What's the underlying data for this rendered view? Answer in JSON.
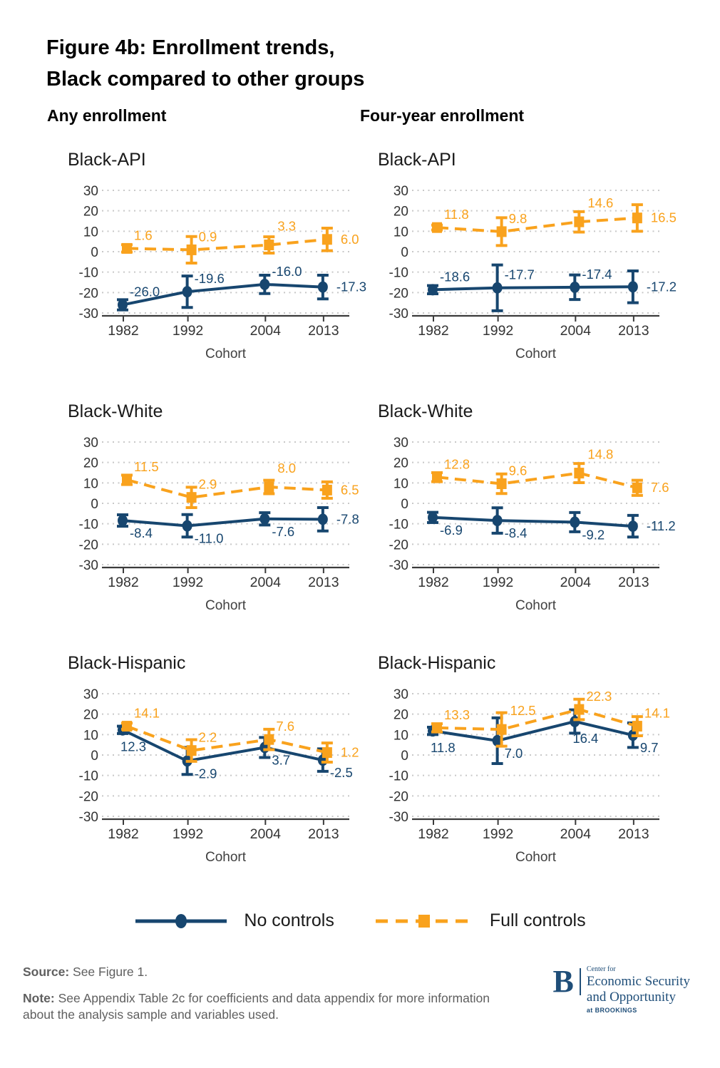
{
  "title": {
    "line1": "Figure 4b: Enrollment trends,",
    "line2": "Black compared to other groups"
  },
  "column_headers": [
    "Any enrollment",
    "Four-year enrollment"
  ],
  "legend": {
    "items": [
      {
        "label": "No controls",
        "series": "no_controls",
        "line": "solid",
        "marker": "circle"
      },
      {
        "label": "Full controls",
        "series": "full_controls",
        "line": "dashed",
        "marker": "square"
      }
    ]
  },
  "footer": {
    "source_label": "Source:",
    "source_text": "See Figure 1.",
    "note_label": "Note:",
    "note_text": "See Appendix Table 2c for coefficients and data appendix for more information about the analysis sample and variables used."
  },
  "logo": {
    "initial": "B",
    "small_top": "Center for",
    "line1": "Economic Security",
    "line2": "and Opportunity",
    "small_bottom": "at BROOKINGS"
  },
  "colors": {
    "no_controls": "#17466F",
    "full_controls": "#F9A21D",
    "grid_dots": "#C8C8C8",
    "axis_line": "#3B3B3B",
    "tick_text": "#333333",
    "xlabel_text": "#404040",
    "logo_navy": "#1F4E79"
  },
  "chart_data": [
    {
      "type": "line",
      "panel": "Any enrollment",
      "title": "Black-API",
      "x": [
        1982,
        1992,
        2004,
        2013
      ],
      "xlabel": "Cohort",
      "ylim": [
        -30,
        30
      ],
      "yticks": [
        30,
        20,
        10,
        0,
        -10,
        -20,
        -30
      ],
      "grid": "dotted horizontal",
      "series": [
        {
          "name": "No controls",
          "key": "no_controls",
          "marker": "circle",
          "line": "solid",
          "values": [
            -26.0,
            -19.6,
            -16.0,
            -17.3
          ],
          "ci_half": [
            2.5,
            7.7,
            4.5,
            5.8
          ],
          "value_labels": [
            "-26.0",
            "-19.6",
            "-16.0",
            "-17.3"
          ],
          "label_pos": [
            "ar",
            "ar",
            "ar",
            "r"
          ]
        },
        {
          "name": "Full controls",
          "key": "full_controls",
          "marker": "square",
          "line": "dashed",
          "values": [
            1.6,
            0.9,
            3.3,
            6.0
          ],
          "ci_half": [
            1.8,
            6.5,
            4.0,
            5.5
          ],
          "value_labels": [
            "1.6",
            "0.9",
            "3.3",
            "6.0"
          ],
          "label_pos": [
            "ar",
            "ar",
            "a2",
            "r"
          ]
        }
      ]
    },
    {
      "type": "line",
      "panel": "Four-year enrollment",
      "title": "Black-API",
      "x": [
        1982,
        1992,
        2004,
        2013
      ],
      "xlabel": "Cohort",
      "ylim": [
        -30,
        30
      ],
      "yticks": [
        30,
        20,
        10,
        0,
        -10,
        -20,
        -30
      ],
      "grid": "dotted horizontal",
      "series": [
        {
          "name": "No controls",
          "key": "no_controls",
          "marker": "circle",
          "line": "solid",
          "values": [
            -18.6,
            -17.7,
            -17.4,
            -17.2
          ],
          "ci_half": [
            2.0,
            11.2,
            6.0,
            7.8
          ],
          "value_labels": [
            "-18.6",
            "-17.7",
            "-17.4",
            "-17.2"
          ],
          "label_pos": [
            "ar",
            "ar",
            "ar",
            "r"
          ]
        },
        {
          "name": "Full controls",
          "key": "full_controls",
          "marker": "square",
          "line": "dashed",
          "values": [
            11.8,
            9.8,
            14.6,
            16.5
          ],
          "ci_half": [
            1.2,
            6.8,
            5.0,
            6.5
          ],
          "value_labels": [
            "11.8",
            "9.8",
            "14.6",
            "16.5"
          ],
          "label_pos": [
            "ar",
            "ar",
            "a2",
            "r"
          ]
        }
      ]
    },
    {
      "type": "line",
      "panel": "Any enrollment",
      "title": "Black-White",
      "x": [
        1982,
        1992,
        2004,
        2013
      ],
      "xlabel": "Cohort",
      "ylim": [
        -30,
        30
      ],
      "yticks": [
        30,
        20,
        10,
        0,
        -10,
        -20,
        -30
      ],
      "grid": "dotted horizontal",
      "series": [
        {
          "name": "No controls",
          "key": "no_controls",
          "marker": "circle",
          "line": "solid",
          "values": [
            -8.4,
            -11.0,
            -7.6,
            -7.8
          ],
          "ci_half": [
            2.8,
            5.5,
            3.0,
            5.7
          ],
          "value_labels": [
            "-8.4",
            "-11.0",
            "-7.6",
            "-7.8"
          ],
          "label_pos": [
            "br",
            "br",
            "br",
            "r"
          ]
        },
        {
          "name": "Full controls",
          "key": "full_controls",
          "marker": "square",
          "line": "dashed",
          "values": [
            11.5,
            2.9,
            8.0,
            6.5
          ],
          "ci_half": [
            2.3,
            5.0,
            3.3,
            4.0
          ],
          "value_labels": [
            "11.5",
            "2.9",
            "8.0",
            "6.5"
          ],
          "label_pos": [
            "ar",
            "ar",
            "a2",
            "r"
          ]
        }
      ]
    },
    {
      "type": "line",
      "panel": "Four-year enrollment",
      "title": "Black-White",
      "x": [
        1982,
        1992,
        2004,
        2013
      ],
      "xlabel": "Cohort",
      "ylim": [
        -30,
        30
      ],
      "yticks": [
        30,
        20,
        10,
        0,
        -10,
        -20,
        -30
      ],
      "grid": "dotted horizontal",
      "series": [
        {
          "name": "No controls",
          "key": "no_controls",
          "marker": "circle",
          "line": "solid",
          "values": [
            -6.9,
            -8.4,
            -9.2,
            -11.2
          ],
          "ci_half": [
            2.5,
            6.2,
            4.7,
            5.3
          ],
          "value_labels": [
            "-6.9",
            "-8.4",
            "-9.2",
            "-11.2"
          ],
          "label_pos": [
            "br",
            "br",
            "br",
            "r"
          ]
        },
        {
          "name": "Full controls",
          "key": "full_controls",
          "marker": "square",
          "line": "dashed",
          "values": [
            12.8,
            9.6,
            14.8,
            7.6
          ],
          "ci_half": [
            2.2,
            4.8,
            4.7,
            3.7
          ],
          "value_labels": [
            "12.8",
            "9.6",
            "14.8",
            "7.6"
          ],
          "label_pos": [
            "ar",
            "ar",
            "a2",
            "r"
          ]
        }
      ]
    },
    {
      "type": "line",
      "panel": "Any enrollment",
      "title": "Black-Hispanic",
      "x": [
        1982,
        1992,
        2004,
        2013
      ],
      "xlabel": "Cohort",
      "ylim": [
        -30,
        30
      ],
      "yticks": [
        30,
        20,
        10,
        0,
        -10,
        -20,
        -30
      ],
      "grid": "dotted horizontal",
      "series": [
        {
          "name": "No controls",
          "key": "no_controls",
          "marker": "circle",
          "line": "solid",
          "values": [
            12.3,
            -2.9,
            3.7,
            -2.5
          ],
          "ci_half": [
            1.8,
            6.6,
            4.9,
            5.5
          ],
          "value_labels": [
            "12.3",
            "-2.9",
            "3.7",
            "-2.5"
          ],
          "label_pos": [
            "b2",
            "br",
            "br",
            "br"
          ]
        },
        {
          "name": "Full controls",
          "key": "full_controls",
          "marker": "square",
          "line": "dashed",
          "values": [
            14.1,
            2.2,
            7.6,
            1.2
          ],
          "ci_half": [
            1.5,
            5.3,
            5.0,
            4.7
          ],
          "value_labels": [
            "14.1",
            "2.2",
            "7.6",
            "1.2"
          ],
          "label_pos": [
            "ar",
            "ar",
            "ar",
            "r"
          ]
        }
      ]
    },
    {
      "type": "line",
      "panel": "Four-year enrollment",
      "title": "Black-Hispanic",
      "x": [
        1982,
        1992,
        2004,
        2013
      ],
      "xlabel": "Cohort",
      "ylim": [
        -30,
        30
      ],
      "yticks": [
        30,
        20,
        10,
        0,
        -10,
        -20,
        -30
      ],
      "grid": "dotted horizontal",
      "series": [
        {
          "name": "No controls",
          "key": "no_controls",
          "marker": "circle",
          "line": "solid",
          "values": [
            11.8,
            7.0,
            16.4,
            9.7
          ],
          "ci_half": [
            1.8,
            11.2,
            5.7,
            6.0
          ],
          "value_labels": [
            "11.8",
            "7.0",
            "16.4",
            "9.7"
          ],
          "label_pos": [
            "b2",
            "br",
            "b2",
            "br"
          ]
        },
        {
          "name": "Full controls",
          "key": "full_controls",
          "marker": "square",
          "line": "dashed",
          "values": [
            13.3,
            12.5,
            22.3,
            14.1
          ],
          "ci_half": [
            2.0,
            8.2,
            5.0,
            4.7
          ],
          "value_labels": [
            "13.3",
            "12.5",
            "22.3",
            "14.1"
          ],
          "label_pos": [
            "ar",
            "a2",
            "ar",
            "ar"
          ]
        }
      ]
    }
  ]
}
